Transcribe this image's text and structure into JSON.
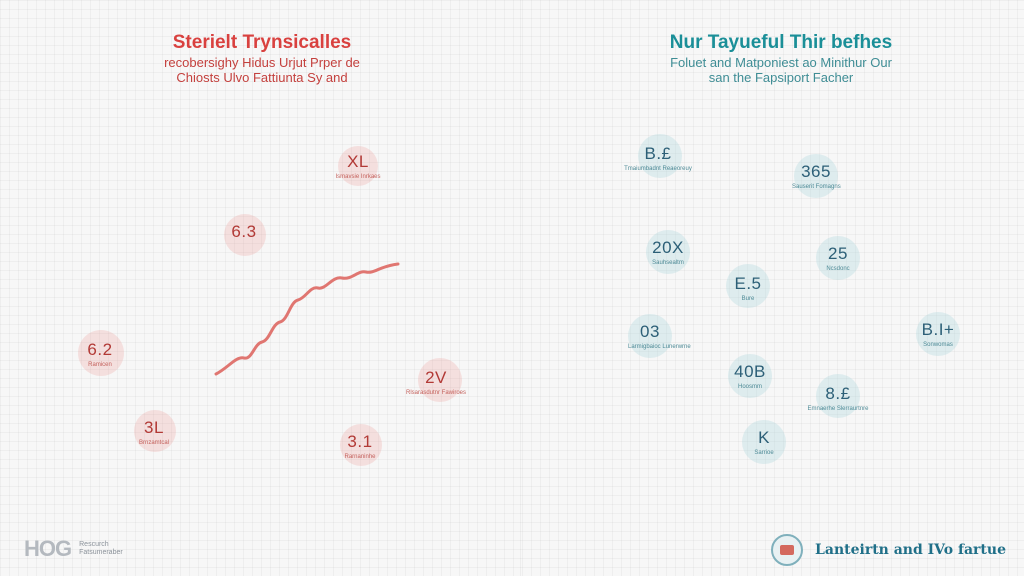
{
  "left": {
    "title": "Sterielt Trynsicalles",
    "subtitle_line1": "recobersighy Hidus Urjut Prper de",
    "subtitle_line2": "Chiosts Ulvo Fattiunta Sy and",
    "stats": [
      {
        "value": "XL",
        "caption": "Ismavsie Inrkaes"
      },
      {
        "value": "6.3",
        "caption": ""
      },
      {
        "value": "6.2",
        "caption": "Ramicen"
      },
      {
        "value": "2V",
        "caption": "Rlsarasdutnr Fawiroes"
      },
      {
        "value": "3L",
        "caption": "Brnzamtcal"
      },
      {
        "value": "3.1",
        "caption": "Rarnaninhe"
      }
    ]
  },
  "right": {
    "title": "Nur Tayueful Thir befhes",
    "subtitle_line1": "Foluet and Matponiest ao Minithur Our",
    "subtitle_line2": "san the Fapsiport Facher",
    "stats": [
      {
        "value": "B.£",
        "caption": "Tmaiumbadnt Reaeoreuy"
      },
      {
        "value": "365",
        "caption": "Sauserit Fomagns"
      },
      {
        "value": "20X",
        "caption": "Sauhsealtm"
      },
      {
        "value": "25",
        "caption": "Ncsdonc"
      },
      {
        "value": "E.5",
        "caption": "Bure"
      },
      {
        "value": "03",
        "caption": "Larmigbaioc Lunerwrne"
      },
      {
        "value": "B.I+",
        "caption": "Sonwomas"
      },
      {
        "value": "40B",
        "caption": "Hoosmm"
      },
      {
        "value": "8.£",
        "caption": "Emnaerhe Slerraurtnre"
      },
      {
        "value": "K",
        "caption": "Sarrioe"
      }
    ]
  },
  "footer": {
    "left_mark": "HOG",
    "left_small_1": "Rescurch",
    "left_small_2": "Fatsumeraber",
    "right_name": "Lanteirtn and IVo fartue"
  }
}
